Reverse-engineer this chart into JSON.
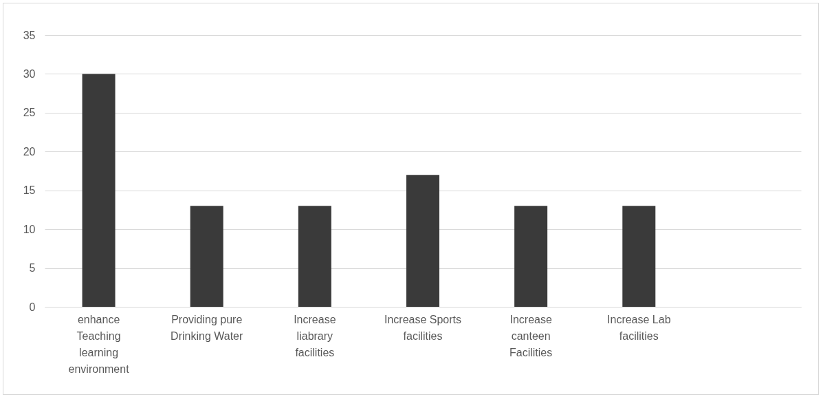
{
  "chart_data": {
    "type": "bar",
    "categories": [
      "enhance Teaching learning environment",
      "Providing pure Drinking Water",
      "Increase liabrary facilities",
      "Increase Sports facilities",
      "Increase canteen Facilities",
      "Increase Lab facilities",
      null
    ],
    "values": [
      30,
      13,
      13,
      17,
      13,
      13,
      null
    ],
    "color": "#3a3a3a",
    "ylim": [
      0,
      35
    ],
    "yticks": [
      0,
      5,
      10,
      15,
      20,
      25,
      30,
      35
    ],
    "grid": "y"
  }
}
